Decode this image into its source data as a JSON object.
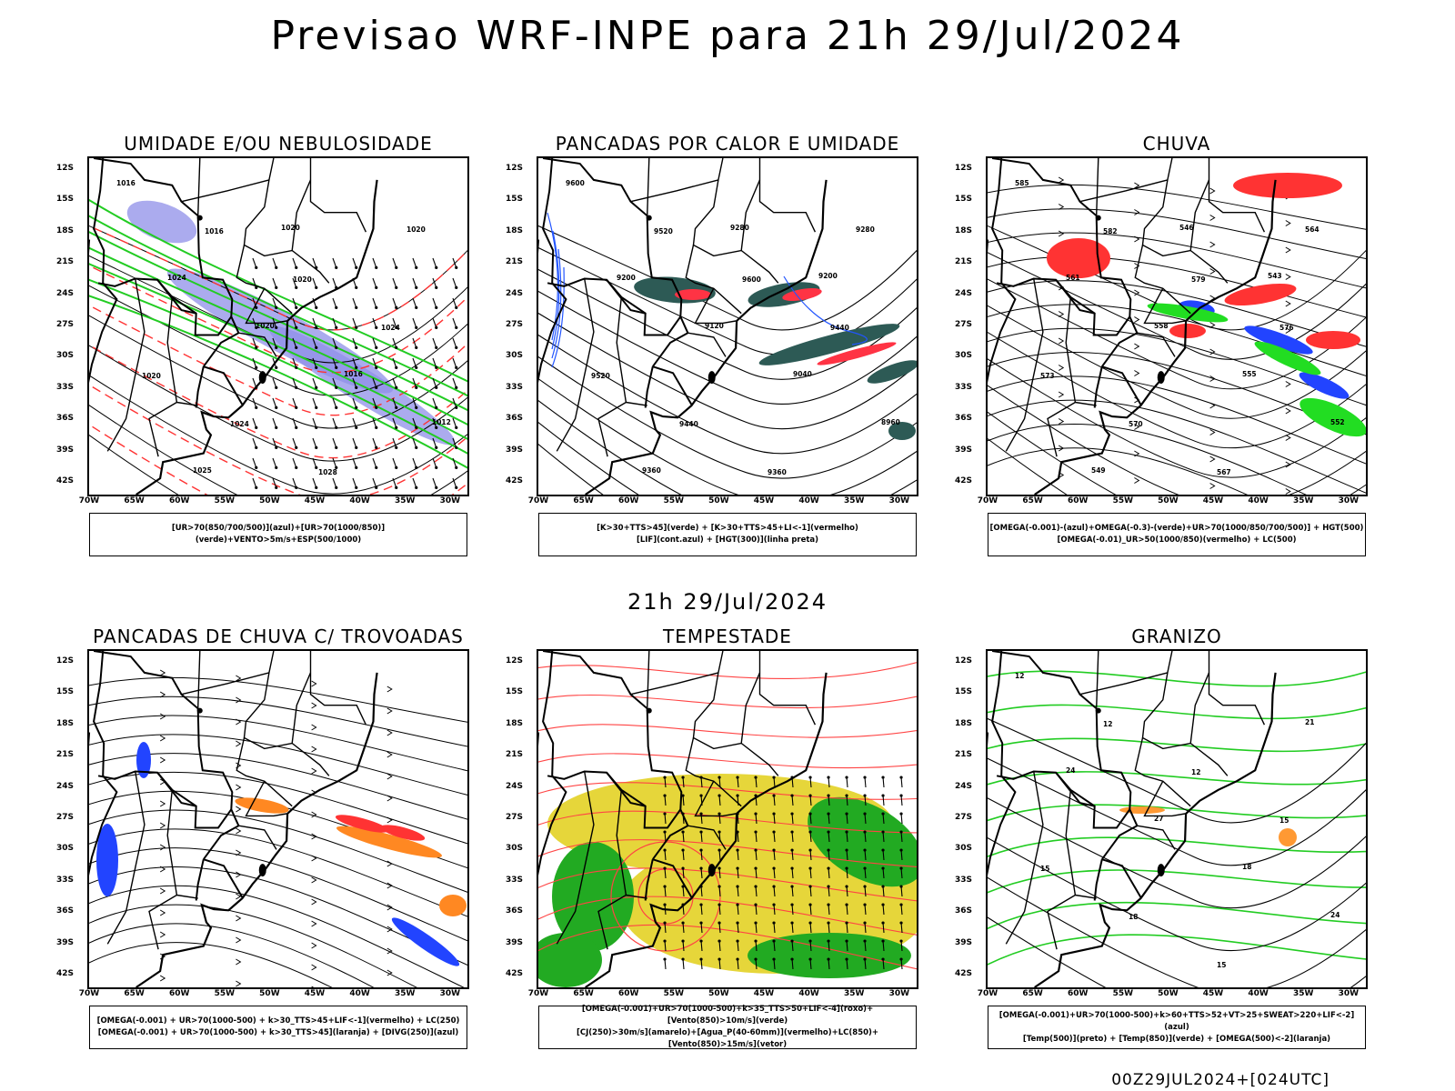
{
  "header": {
    "title": "Previsao WRF-INPE  para 21h 29/Jul/2024"
  },
  "mid_time": "21h 29/Jul/2024",
  "footer": "00Z29JUL2024+[024UTC]",
  "axes": {
    "lat_labels": [
      "12S",
      "15S",
      "18S",
      "21S",
      "24S",
      "27S",
      "30S",
      "33S",
      "36S",
      "39S",
      "42S"
    ],
    "lon_labels": [
      "70W",
      "65W",
      "60W",
      "55W",
      "50W",
      "45W",
      "40W",
      "35W",
      "30W"
    ]
  },
  "panels": [
    {
      "id": "umidade",
      "title": "UMIDADE E/OU NEBULOSIDADE",
      "legend": [
        "[UR>70(850/700/500)](azul)+[UR>70(1000/850)](verde)+VENTO>5m/s+ESP(500/1000)"
      ],
      "overlay_colors": [
        "#8f8fe8",
        "#22cc22",
        "#ff3333"
      ],
      "contour_labels": [
        "1016",
        "1016",
        "1020",
        "1024",
        "1020",
        "1024",
        "1028",
        "1020",
        "1024",
        "1020",
        "1016",
        "1012",
        "1025",
        "1020"
      ]
    },
    {
      "id": "calor",
      "title": "PANCADAS POR CALOR E UMIDADE",
      "legend": [
        "[K>30+TTS>45](verde) + [K>30+TTS>45+LI<-1](vermelho)",
        "[LIF](cont.azul) + [HGT(300)](linha preta)"
      ],
      "overlay_colors": [
        "#2d5a55",
        "#ff3344",
        "#2255ff"
      ],
      "contour_labels": [
        "9600",
        "9520",
        "9600",
        "9440",
        "9520",
        "9440",
        "9360",
        "9280",
        "9200",
        "9120",
        "9040",
        "8960",
        "9360",
        "9280",
        "9200"
      ]
    },
    {
      "id": "chuva",
      "title": "CHUVA",
      "legend": [
        "[OMEGA(-0.001)-(azul)+OMEGA(-0.3)-(verde)+UR>70(1000/850/700/500)] + HGT(500)",
        "[OMEGA(-0.01)_UR>50(1000/850)(vermelho) + LC(500)"
      ],
      "overlay_colors": [
        "#ff3333",
        "#2244ff",
        "#22dd22"
      ],
      "contour_labels": [
        "585",
        "582",
        "579",
        "576",
        "573",
        "570",
        "567",
        "564",
        "561",
        "558",
        "555",
        "552",
        "549",
        "546",
        "543"
      ]
    },
    {
      "id": "trovoadas",
      "title": "PANCADAS DE CHUVA C/ TROVOADAS",
      "legend": [
        "[OMEGA(-0.001) + UR>70(1000-500) + k>30_TTS>45+LIF<-1](vermelho) + LC(250)",
        "[OMEGA(-0.001) + UR>70(1000-500) + k>30_TTS>45](laranja) + [DIVG(250)](azul)"
      ],
      "overlay_colors": [
        "#2244ff",
        "#ff8822",
        "#ff3333"
      ],
      "contour_labels": []
    },
    {
      "id": "tempestade",
      "title": "TEMPESTADE",
      "legend": [
        "[OMEGA(-0.001)+UR>70(1000-500)+k>35_TTS>50+LIF<-4](roxo)+[Vento(850)>10m/s](verde)",
        "[CJ(250)>30m/s](amarelo)+[Agua_P(40-60mm)](vermelho)+LC(850)+[Vento(850)>15m/s](vetor)"
      ],
      "overlay_colors": [
        "#e6d63a",
        "#22aa22",
        "#ff4444"
      ],
      "contour_labels": []
    },
    {
      "id": "granizo",
      "title": "GRANIZO",
      "legend": [
        "[OMEGA(-0.001)+UR>70(1000-500)+k>60+TTS>52+VT>25+SWEAT>220+LIF<-2](azul)",
        "[Temp(500)](preto) + [Temp(850)](verde) + [OMEGA(500)<-2](laranja)"
      ],
      "overlay_colors": [
        "#22cc22",
        "#ff9933",
        "#000000"
      ],
      "contour_labels": [
        "12",
        "12",
        "12",
        "15",
        "15",
        "18",
        "15",
        "21",
        "24",
        "27",
        "18",
        "24"
      ]
    }
  ]
}
